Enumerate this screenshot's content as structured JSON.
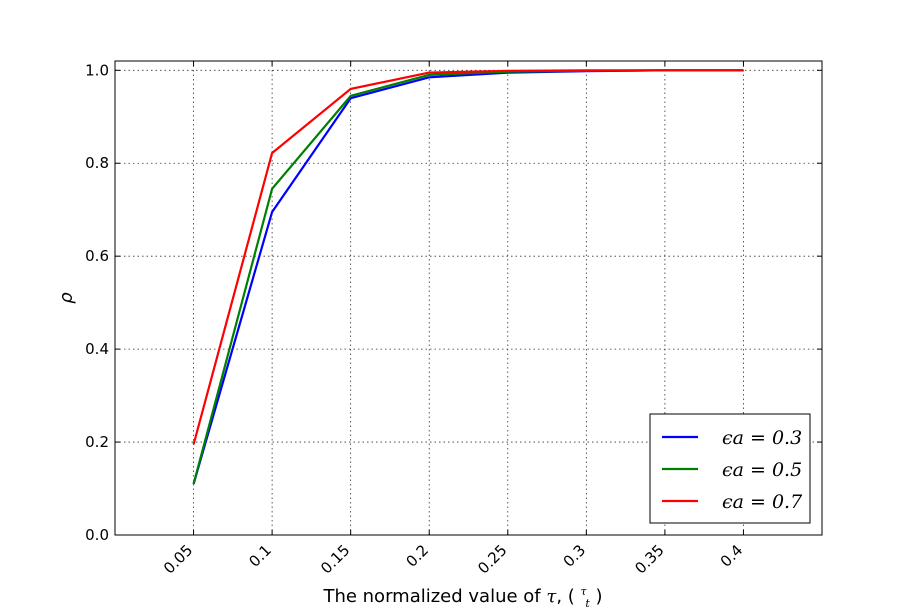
{
  "chart_data": {
    "type": "line",
    "x": [
      0.05,
      0.1,
      0.15,
      0.2,
      0.25,
      0.3,
      0.35,
      0.4
    ],
    "xticklabels": [
      "0.05",
      "0.1",
      "0.15",
      "0.2",
      "0.25",
      "0.3",
      "0.35",
      "0.4"
    ],
    "yticks": [
      0.0,
      0.2,
      0.4,
      0.6,
      0.8,
      1.0
    ],
    "yticklabels": [
      "0.0",
      "0.2",
      "0.4",
      "0.6",
      "0.8",
      "1.0"
    ],
    "xlim": [
      0.0,
      0.45
    ],
    "ylim": [
      0.0,
      1.02
    ],
    "xlabel": "The normalized value of τ, ( τ/t )",
    "ylabel": "ρ",
    "grid": true,
    "legend_position": "lower-right",
    "series": [
      {
        "name": "ϵa = 0.3",
        "color": "#0000ff",
        "values": [
          0.11,
          0.695,
          0.94,
          0.985,
          0.995,
          0.998,
          1.0,
          1.0
        ]
      },
      {
        "name": "ϵa = 0.5",
        "color": "#008000",
        "values": [
          0.11,
          0.745,
          0.945,
          0.99,
          0.997,
          0.999,
          1.0,
          1.0
        ]
      },
      {
        "name": "ϵa = 0.7",
        "color": "#ff0000",
        "values": [
          0.195,
          0.822,
          0.96,
          0.995,
          0.999,
          1.0,
          1.0,
          1.0
        ]
      }
    ]
  }
}
